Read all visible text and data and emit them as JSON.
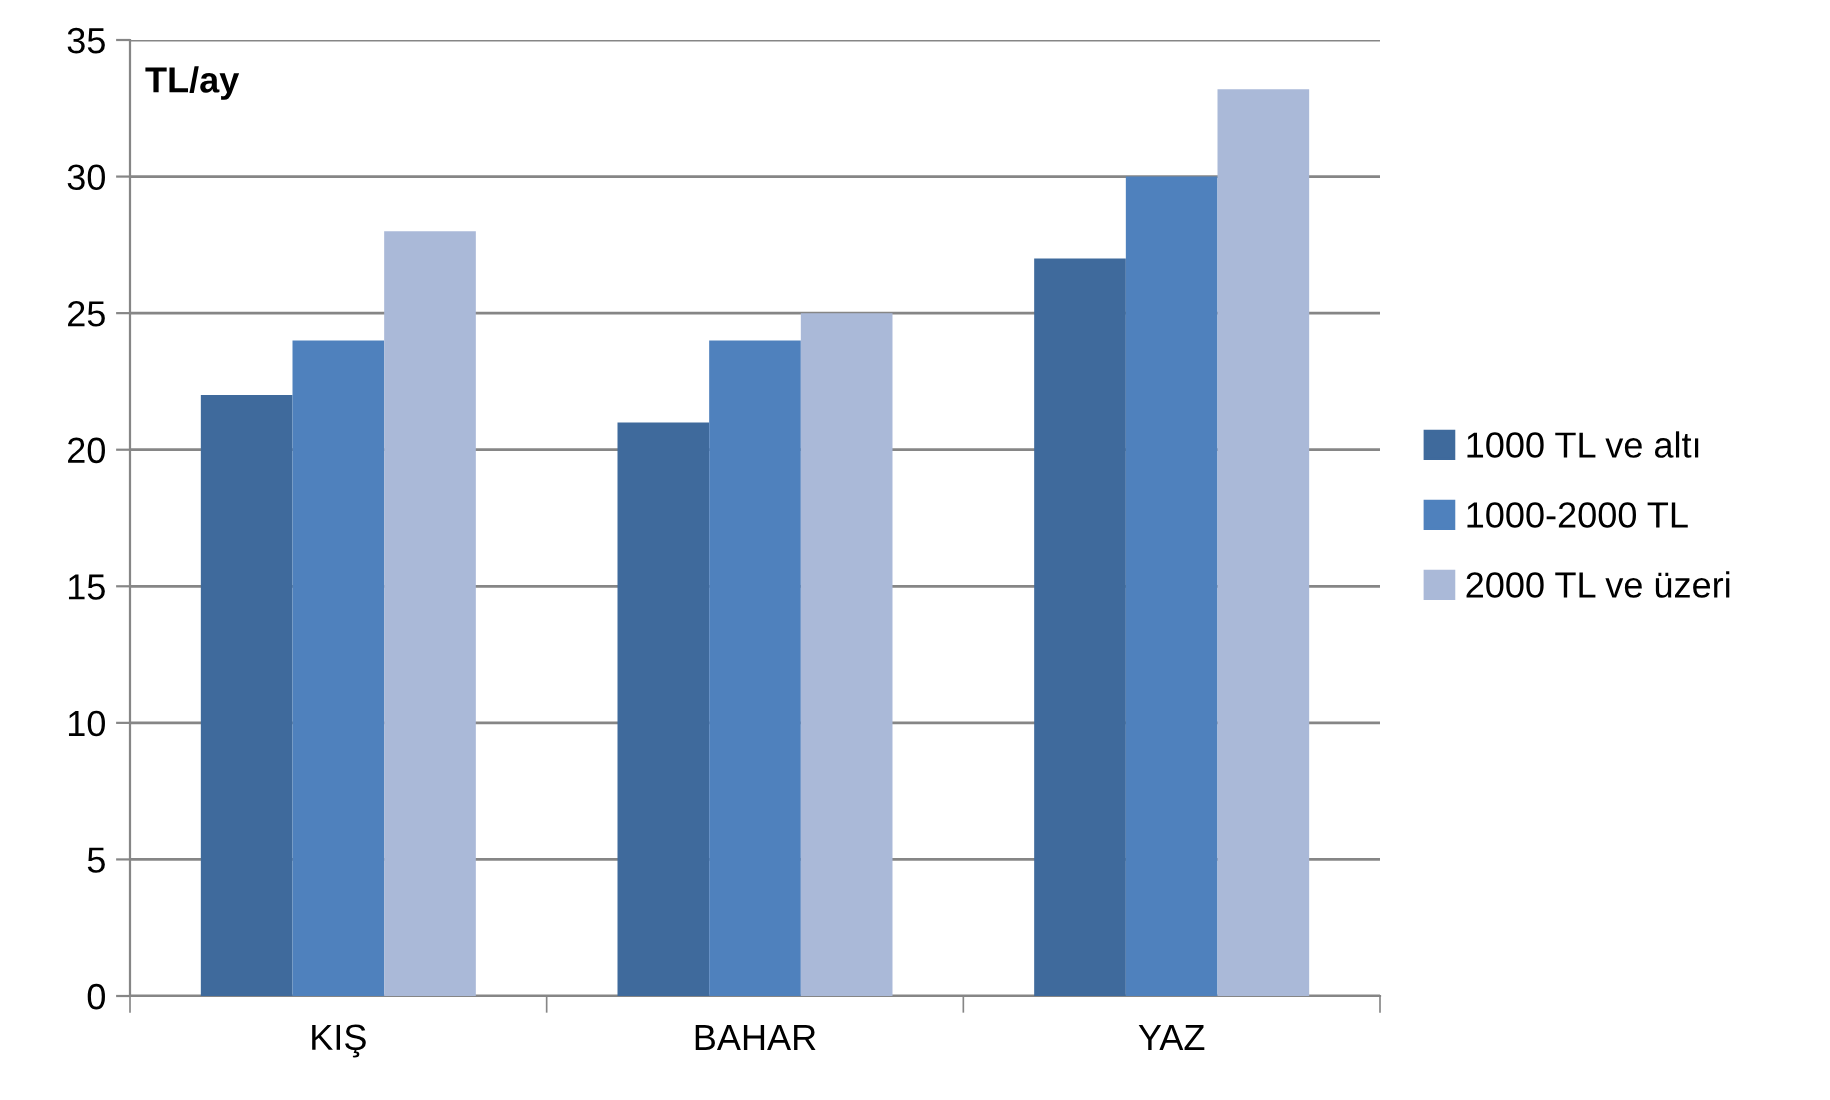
{
  "chart_data": {
    "type": "bar",
    "ylabel": "TL/ay",
    "categories": [
      "KIŞ",
      "BAHAR",
      "YAZ"
    ],
    "series": [
      {
        "name": "1000 TL ve altı",
        "color": "#3f6a9c",
        "values": [
          22,
          21,
          27
        ]
      },
      {
        "name": "1000-2000 TL",
        "color": "#4f81bd",
        "values": [
          24,
          24,
          30
        ]
      },
      {
        "name": "2000 TL ve üzeri",
        "color": "#aab9d8",
        "values": [
          28,
          25,
          33.2
        ]
      }
    ],
    "ylim": [
      0,
      35
    ],
    "yticks": [
      0,
      5,
      10,
      15,
      20,
      25,
      30,
      35
    ],
    "grid": "y",
    "legend": "right"
  }
}
